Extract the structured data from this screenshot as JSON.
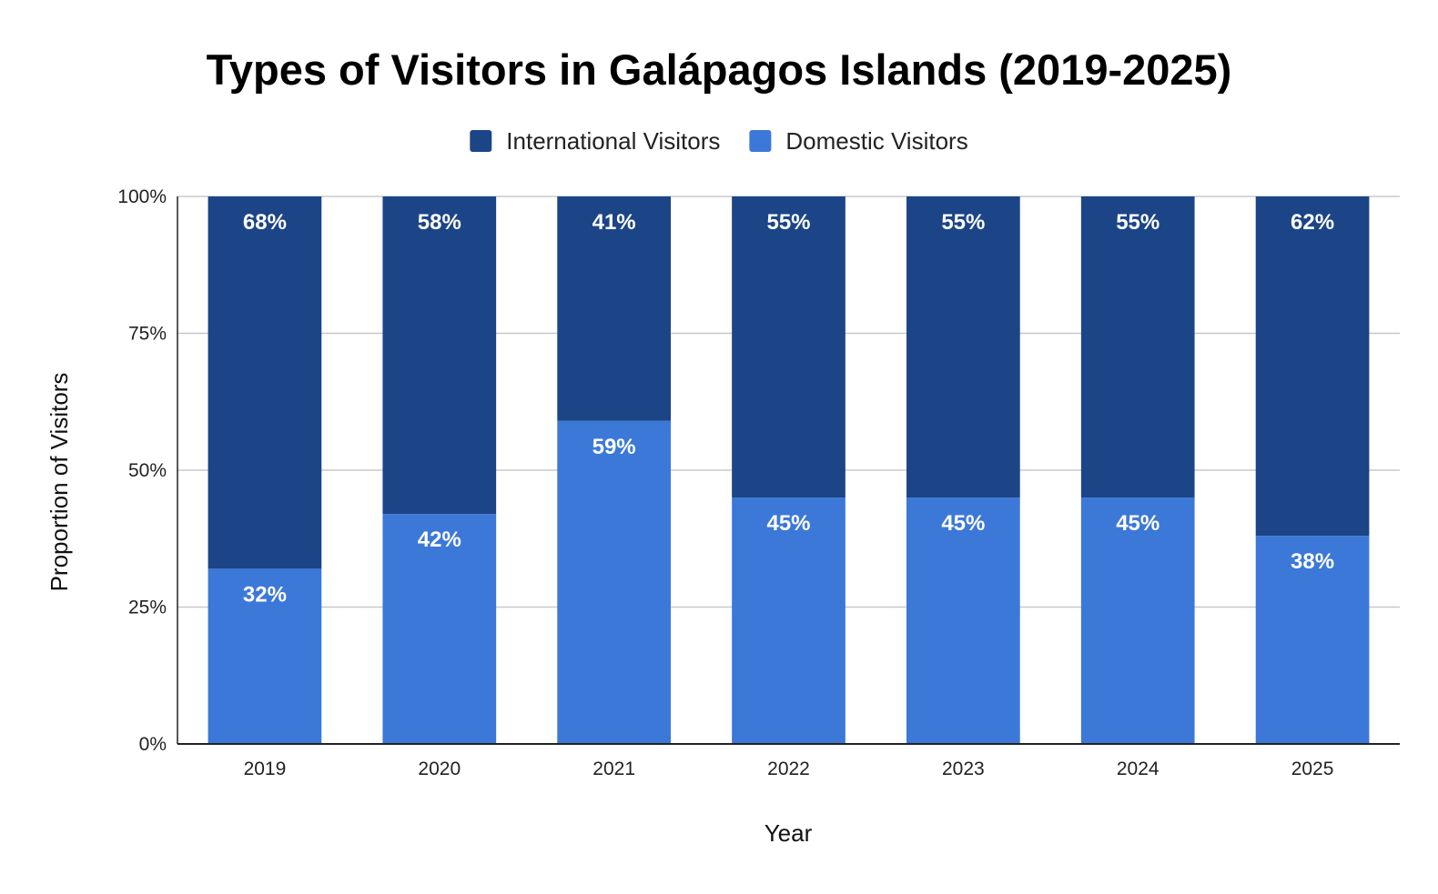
{
  "chart_data": {
    "type": "bar",
    "stacked": true,
    "title": "Types of Visitors in Galápagos Islands (2019-2025)",
    "xlabel": "Year",
    "ylabel": "Proportion of Visitors",
    "categories": [
      "2019",
      "2020",
      "2021",
      "2022",
      "2023",
      "2024",
      "2025"
    ],
    "series": [
      {
        "name": "Domestic Visitors",
        "values": [
          32,
          42,
          59,
          45,
          45,
          45,
          38
        ],
        "labels": [
          "32%",
          "42%",
          "59%",
          "45%",
          "45%",
          "45%",
          "38%"
        ],
        "color": "#3c78d8"
      },
      {
        "name": "International Visitors",
        "values": [
          68,
          58,
          41,
          55,
          55,
          55,
          62
        ],
        "labels": [
          "68%",
          "58%",
          "41%",
          "55%",
          "55%",
          "55%",
          "62%"
        ],
        "color": "#1c4587"
      }
    ],
    "legend_order": [
      "International Visitors",
      "Domestic Visitors"
    ],
    "legend_position": "top",
    "ylim": [
      0,
      100
    ],
    "yticks": [
      0,
      25,
      50,
      75,
      100
    ],
    "ytick_labels": [
      "0%",
      "25%",
      "50%",
      "75%",
      "100%"
    ],
    "grid": true
  }
}
